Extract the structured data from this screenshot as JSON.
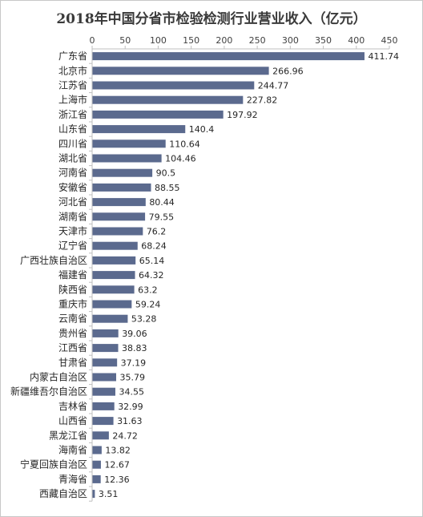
{
  "chart_data": {
    "type": "bar",
    "orientation": "horizontal",
    "title": "2018年中国分省市检验检测行业营业收入（亿元）",
    "xlim": [
      0,
      450
    ],
    "x_ticks": [
      0,
      50,
      100,
      150,
      200,
      250,
      300,
      350,
      400,
      450
    ],
    "x_axis_position": "top",
    "grid": false,
    "bar_color": "#5b6a8e",
    "categories": [
      "广东省",
      "北京市",
      "江苏省",
      "上海市",
      "浙江省",
      "山东省",
      "四川省",
      "湖北省",
      "河南省",
      "安徽省",
      "河北省",
      "湖南省",
      "天津市",
      "辽宁省",
      "广西壮族自治区",
      "福建省",
      "陕西省",
      "重庆市",
      "云南省",
      "贵州省",
      "江西省",
      "甘肃省",
      "内蒙古自治区",
      "新疆维吾尔自治区",
      "吉林省",
      "山西省",
      "黑龙江省",
      "海南省",
      "宁夏回族自治区",
      "青海省",
      "西藏自治区"
    ],
    "values": [
      411.74,
      266.96,
      244.77,
      227.82,
      197.92,
      140.4,
      110.64,
      104.46,
      90.5,
      88.55,
      80.44,
      79.55,
      76.2,
      68.24,
      65.14,
      64.32,
      63.2,
      59.24,
      53.28,
      39.06,
      38.83,
      37.19,
      35.79,
      34.55,
      32.99,
      31.63,
      24.72,
      13.82,
      12.67,
      12.36,
      3.51
    ],
    "value_labels": [
      "411.74",
      "266.96",
      "244.77",
      "227.82",
      "197.92",
      "140.4",
      "110.64",
      "104.46",
      "90.5",
      "88.55",
      "80.44",
      "79.55",
      "76.2",
      "68.24",
      "65.14",
      "64.32",
      "63.2",
      "59.24",
      "53.28",
      "39.06",
      "38.83",
      "37.19",
      "35.79",
      "34.55",
      "32.99",
      "31.63",
      "24.72",
      "13.82",
      "12.67",
      "12.36",
      "3.51"
    ]
  }
}
